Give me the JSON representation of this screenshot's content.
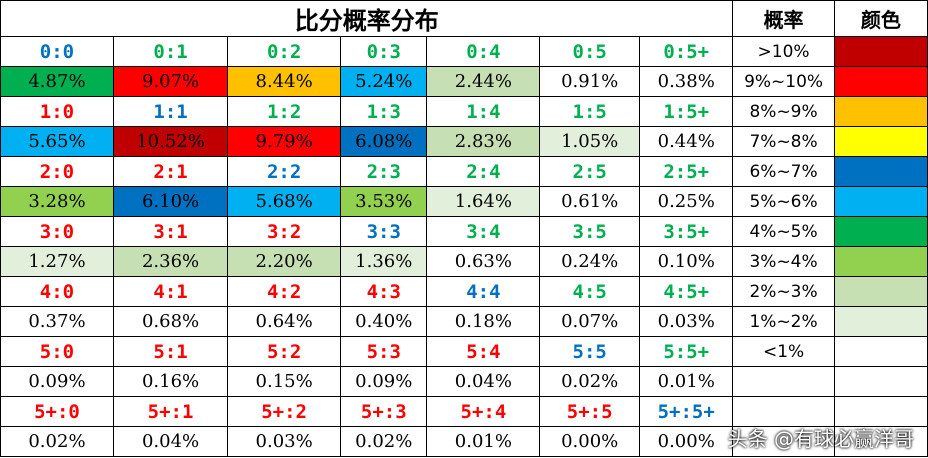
{
  "title": "比分概率分布",
  "legend_header": "概率",
  "color_header": "颜色",
  "legend": [
    {
      "label": ">10%",
      "color": "#C00000"
    },
    {
      "label": "9%~10%",
      "color": "#FF0000"
    },
    {
      "label": "8%~9%",
      "color": "#FFC000"
    },
    {
      "label": "7%~8%",
      "color": "#FFFF00"
    },
    {
      "label": "6%~7%",
      "color": "#0070C0"
    },
    {
      "label": "5%~6%",
      "color": "#00B0F0"
    },
    {
      "label": "4%~5%",
      "color": "#00B050"
    },
    {
      "label": "3%~4%",
      "color": "#92D050"
    },
    {
      "label": "2%~3%",
      "color": "#C6E0B4"
    },
    {
      "label": "1%~2%",
      "color": "#E2EFDA"
    },
    {
      "label": "<1%",
      "color": "#FFFFFF"
    }
  ],
  "score_colors": {
    "win": "#FF0000",
    "draw": "#0070C0",
    "loss": "#00B050"
  },
  "rows": [
    {
      "scores": [
        [
          "0:0",
          "draw"
        ],
        [
          "0:1",
          "loss"
        ],
        [
          "0:2",
          "loss"
        ],
        [
          "0:3",
          "loss"
        ],
        [
          "0:4",
          "loss"
        ],
        [
          "0:5",
          "loss"
        ],
        [
          "0:5+",
          "loss"
        ]
      ],
      "probs": [
        "4.87%",
        "9.07%",
        "8.44%",
        "5.24%",
        "2.44%",
        "0.91%",
        "0.38%"
      ]
    },
    {
      "scores": [
        [
          "1:0",
          "win"
        ],
        [
          "1:1",
          "draw"
        ],
        [
          "1:2",
          "loss"
        ],
        [
          "1:3",
          "loss"
        ],
        [
          "1:4",
          "loss"
        ],
        [
          "1:5",
          "loss"
        ],
        [
          "1:5+",
          "loss"
        ]
      ],
      "probs": [
        "5.65%",
        "10.52%",
        "9.79%",
        "6.08%",
        "2.83%",
        "1.05%",
        "0.44%"
      ]
    },
    {
      "scores": [
        [
          "2:0",
          "win"
        ],
        [
          "2:1",
          "win"
        ],
        [
          "2:2",
          "draw"
        ],
        [
          "2:3",
          "loss"
        ],
        [
          "2:4",
          "loss"
        ],
        [
          "2:5",
          "loss"
        ],
        [
          "2:5+",
          "loss"
        ]
      ],
      "probs": [
        "3.28%",
        "6.10%",
        "5.68%",
        "3.53%",
        "1.64%",
        "0.61%",
        "0.25%"
      ]
    },
    {
      "scores": [
        [
          "3:0",
          "win"
        ],
        [
          "3:1",
          "win"
        ],
        [
          "3:2",
          "win"
        ],
        [
          "3:3",
          "draw"
        ],
        [
          "3:4",
          "loss"
        ],
        [
          "3:5",
          "loss"
        ],
        [
          "3:5+",
          "loss"
        ]
      ],
      "probs": [
        "1.27%",
        "2.36%",
        "2.20%",
        "1.36%",
        "0.63%",
        "0.24%",
        "0.10%"
      ]
    },
    {
      "scores": [
        [
          "4:0",
          "win"
        ],
        [
          "4:1",
          "win"
        ],
        [
          "4:2",
          "win"
        ],
        [
          "4:3",
          "win"
        ],
        [
          "4:4",
          "draw"
        ],
        [
          "4:5",
          "loss"
        ],
        [
          "4:5+",
          "loss"
        ]
      ],
      "probs": [
        "0.37%",
        "0.68%",
        "0.64%",
        "0.40%",
        "0.18%",
        "0.07%",
        "0.03%"
      ]
    },
    {
      "scores": [
        [
          "5:0",
          "win"
        ],
        [
          "5:1",
          "win"
        ],
        [
          "5:2",
          "win"
        ],
        [
          "5:3",
          "win"
        ],
        [
          "5:4",
          "win"
        ],
        [
          "5:5",
          "draw"
        ],
        [
          "5:5+",
          "loss"
        ]
      ],
      "probs": [
        "0.09%",
        "0.16%",
        "0.15%",
        "0.09%",
        "0.04%",
        "0.02%",
        "0.01%"
      ]
    },
    {
      "scores": [
        [
          "5+:0",
          "win"
        ],
        [
          "5+:1",
          "win"
        ],
        [
          "5+:2",
          "win"
        ],
        [
          "5+:3",
          "win"
        ],
        [
          "5+:4",
          "win"
        ],
        [
          "5+:5",
          "win"
        ],
        [
          "5+:5+",
          "draw"
        ]
      ],
      "probs": [
        "0.02%",
        "0.04%",
        "0.03%",
        "0.02%",
        "0.01%",
        "0.00%",
        "0.00%"
      ]
    }
  ],
  "watermark": "头条 @有球必赢洋哥"
}
